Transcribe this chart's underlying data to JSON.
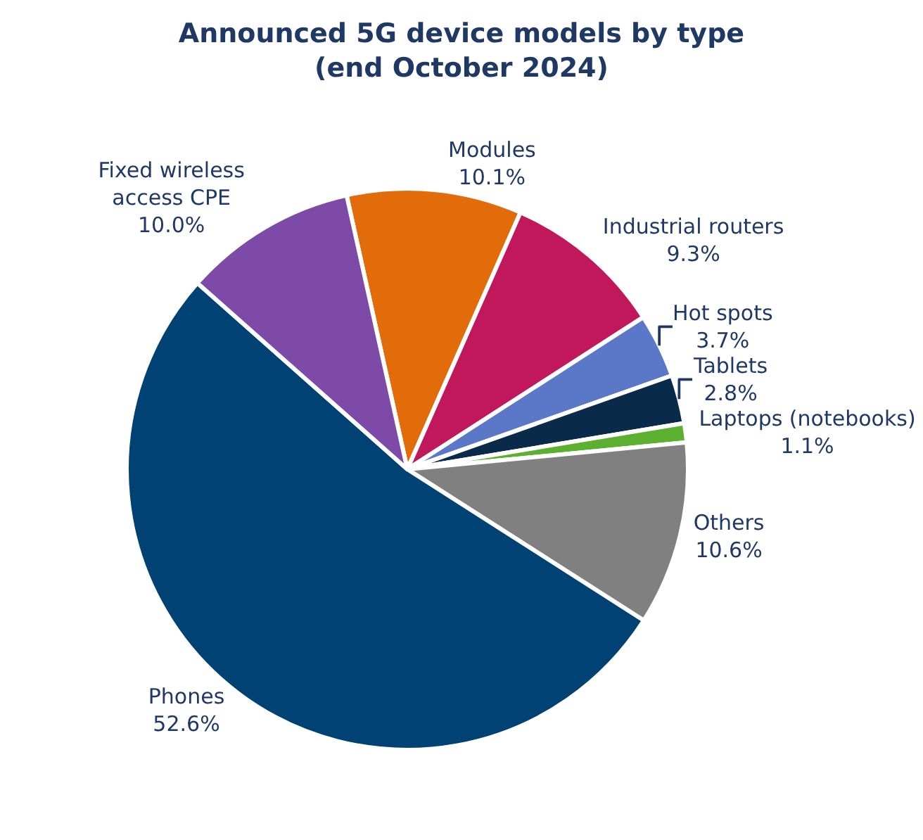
{
  "chart_data": {
    "type": "pie",
    "title": "Announced 5G device models by type\n(end October 2024)",
    "categories": [
      "Modules",
      "Industrial routers",
      "Hot spots",
      "Tablets",
      "Laptops (notebooks)",
      "Others",
      "Phones",
      "Fixed wireless\naccess CPE"
    ],
    "values": [
      10.1,
      9.3,
      3.7,
      2.8,
      1.1,
      10.6,
      52.6,
      10.0
    ],
    "value_labels": [
      "10.1%",
      "9.3%",
      "3.7%",
      "2.8%",
      "1.1%",
      "10.6%",
      "52.6%",
      "10.0%"
    ],
    "colors": [
      "#e36c0a",
      "#c0185a",
      "#5b78c8",
      "#0a2a4a",
      "#5cb030",
      "#808080",
      "#004274",
      "#7d4aa8"
    ],
    "legend": false
  }
}
